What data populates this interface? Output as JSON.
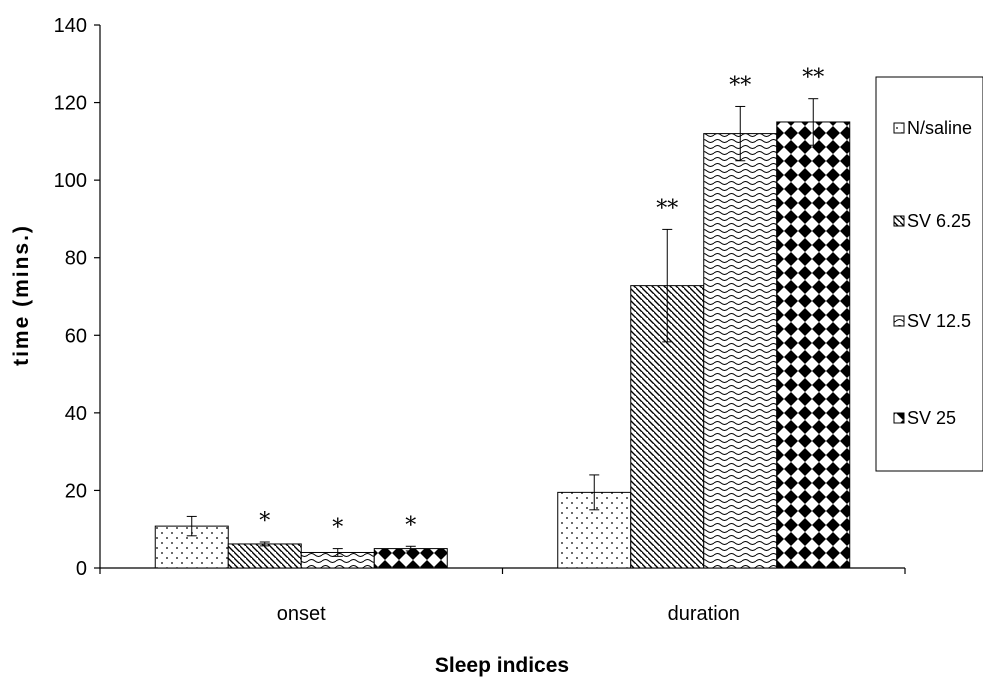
{
  "chart_data": {
    "type": "bar",
    "title": "",
    "xlabel": "Sleep indices",
    "ylabel": "time (mins.)",
    "ylim": [
      0,
      140
    ],
    "yticks": [
      0,
      20,
      40,
      60,
      80,
      100,
      120,
      140
    ],
    "grid": false,
    "legend_position": "right",
    "categories": [
      "onset",
      "duration"
    ],
    "series": [
      {
        "name": "N/saline",
        "pattern": "dots",
        "values": [
          10.8,
          19.5
        ],
        "errors": [
          2.5,
          4.5
        ],
        "annotations": [
          "",
          ""
        ]
      },
      {
        "name": "SV 6.25",
        "pattern": "diagonal",
        "values": [
          6.2,
          72.8
        ],
        "errors": [
          0.5,
          14.5
        ],
        "annotations": [
          "*",
          "**"
        ]
      },
      {
        "name": "SV 12.5",
        "pattern": "waves",
        "values": [
          4.0,
          112.0
        ],
        "errors": [
          1.0,
          7.0
        ],
        "annotations": [
          "*",
          "**"
        ]
      },
      {
        "name": "SV 25",
        "pattern": "diamonds",
        "values": [
          5.0,
          115.0
        ],
        "errors": [
          0.6,
          6.0
        ],
        "annotations": [
          "*",
          "**"
        ]
      }
    ]
  }
}
